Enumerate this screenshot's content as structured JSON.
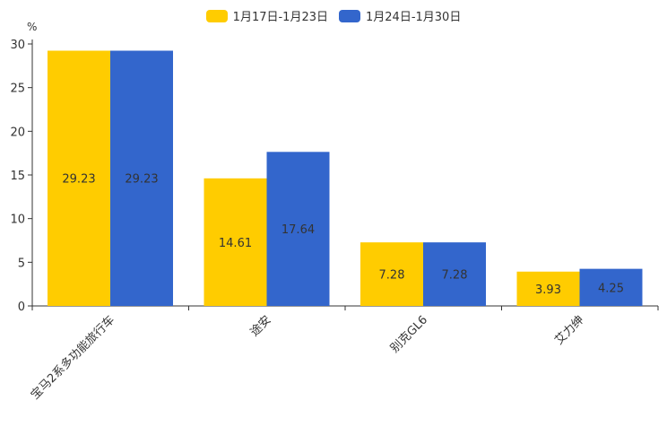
{
  "chart_data": {
    "type": "bar",
    "title": "",
    "ylabel": "%",
    "xlabel": "",
    "ylim": [
      0,
      30
    ],
    "yticks": [
      0,
      5,
      10,
      15,
      20,
      25,
      30
    ],
    "categories": [
      "宝马2系多功能旅行车",
      "途安",
      "别克GL6",
      "艾力绅"
    ],
    "series": [
      {
        "name": "1月17日-1月23日",
        "color": "#ffcc00",
        "values": [
          29.23,
          14.61,
          7.28,
          3.93
        ]
      },
      {
        "name": "1月24日-1月30日",
        "color": "#3366cc",
        "values": [
          29.23,
          17.64,
          7.28,
          4.25
        ]
      }
    ],
    "legend_position": "top-center",
    "grid": false
  }
}
